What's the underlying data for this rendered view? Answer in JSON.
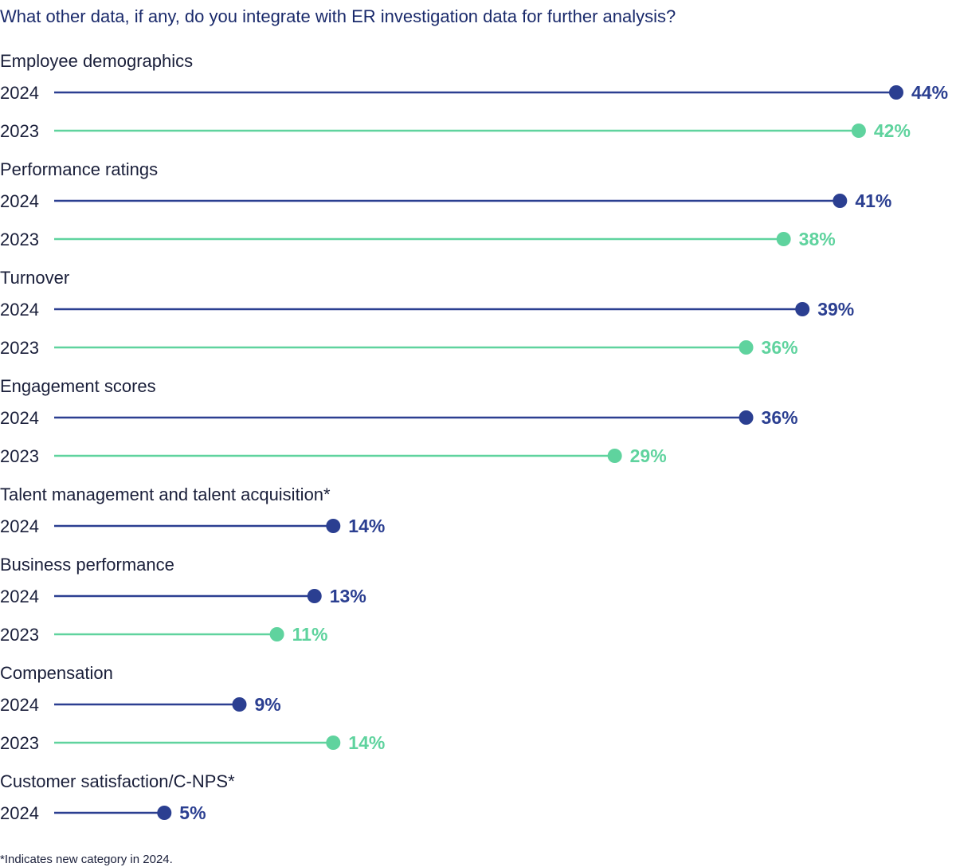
{
  "chart_data": {
    "type": "lollipop",
    "title": "What other data, if any, do you integrate with ER investigation data for further analysis?",
    "value_suffix": "%",
    "xlim": [
      0,
      44
    ],
    "colors": {
      "2024": "#2b3f91",
      "2023": "#5fd39e"
    },
    "groups": [
      {
        "category": "Employee demographics",
        "bars": [
          {
            "year": "2024",
            "value": 44
          },
          {
            "year": "2023",
            "value": 42
          }
        ]
      },
      {
        "category": "Performance ratings",
        "bars": [
          {
            "year": "2024",
            "value": 41
          },
          {
            "year": "2023",
            "value": 38
          }
        ]
      },
      {
        "category": "Turnover",
        "bars": [
          {
            "year": "2024",
            "value": 39
          },
          {
            "year": "2023",
            "value": 36
          }
        ]
      },
      {
        "category": "Engagement scores",
        "bars": [
          {
            "year": "2024",
            "value": 36
          },
          {
            "year": "2023",
            "value": 29
          }
        ]
      },
      {
        "category": "Talent management and talent acquisition*",
        "bars": [
          {
            "year": "2024",
            "value": 14
          }
        ]
      },
      {
        "category": "Business performance",
        "bars": [
          {
            "year": "2024",
            "value": 13
          },
          {
            "year": "2023",
            "value": 11
          }
        ]
      },
      {
        "category": "Compensation",
        "bars": [
          {
            "year": "2024",
            "value": 9
          },
          {
            "year": "2023",
            "value": 14
          }
        ]
      },
      {
        "category": "Customer satisfaction/C-NPS*",
        "bars": [
          {
            "year": "2024",
            "value": 5
          }
        ]
      }
    ],
    "footnote": "*Indicates new category in 2024."
  }
}
